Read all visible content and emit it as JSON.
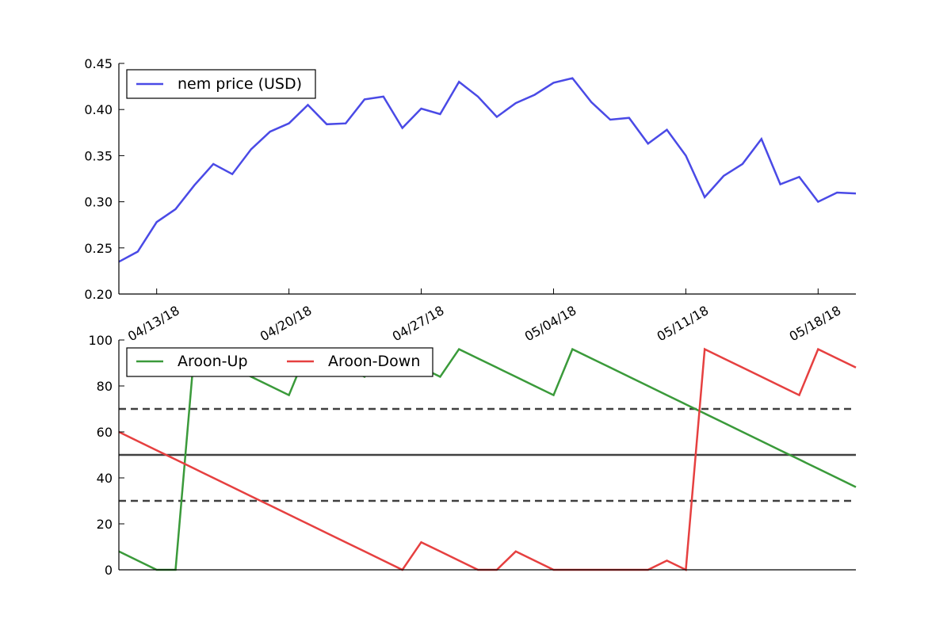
{
  "chart_data": [
    {
      "type": "line",
      "title": "",
      "xlabel": "",
      "ylabel": "",
      "ylim": [
        0.2,
        0.45
      ],
      "yticks": [
        "0.20",
        "0.25",
        "0.30",
        "0.35",
        "0.40",
        "0.45"
      ],
      "xticks": [
        "04/13/18",
        "04/20/18",
        "04/27/18",
        "05/04/18",
        "05/11/18",
        "05/18/18"
      ],
      "x": [
        "04/11/18",
        "04/12/18",
        "04/13/18",
        "04/14/18",
        "04/15/18",
        "04/16/18",
        "04/17/18",
        "04/18/18",
        "04/19/18",
        "04/20/18",
        "04/21/18",
        "04/22/18",
        "04/23/18",
        "04/24/18",
        "04/25/18",
        "04/26/18",
        "04/27/18",
        "04/28/18",
        "04/29/18",
        "04/30/18",
        "05/01/18",
        "05/02/18",
        "05/03/18",
        "05/04/18",
        "05/05/18",
        "05/06/18",
        "05/07/18",
        "05/08/18",
        "05/09/18",
        "05/10/18",
        "05/11/18",
        "05/12/18",
        "05/13/18",
        "05/14/18",
        "05/15/18",
        "05/16/18",
        "05/17/18",
        "05/18/18",
        "05/19/18",
        "05/20/18"
      ],
      "series": [
        {
          "name": "nem price (USD)",
          "color": "#4a4ae6",
          "values": [
            0.235,
            0.246,
            0.278,
            0.292,
            0.318,
            0.341,
            0.33,
            0.357,
            0.376,
            0.385,
            0.405,
            0.384,
            0.385,
            0.411,
            0.414,
            0.38,
            0.401,
            0.395,
            0.43,
            0.414,
            0.392,
            0.407,
            0.416,
            0.429,
            0.434,
            0.408,
            0.389,
            0.391,
            0.363,
            0.378,
            0.35,
            0.305,
            0.328,
            0.341,
            0.368,
            0.319,
            0.327,
            0.3,
            0.31,
            0.309
          ]
        }
      ],
      "legend": "upper left"
    },
    {
      "type": "line",
      "title": "",
      "xlabel": "",
      "ylabel": "",
      "ylim": [
        0,
        100
      ],
      "yticks": [
        "0",
        "20",
        "40",
        "60",
        "80",
        "100"
      ],
      "x": [
        "04/11/18",
        "04/12/18",
        "04/13/18",
        "04/14/18",
        "04/15/18",
        "04/16/18",
        "04/17/18",
        "04/18/18",
        "04/19/18",
        "04/20/18",
        "04/21/18",
        "04/22/18",
        "04/23/18",
        "04/24/18",
        "04/25/18",
        "04/26/18",
        "04/27/18",
        "04/28/18",
        "04/29/18",
        "04/30/18",
        "05/01/18",
        "05/02/18",
        "05/03/18",
        "05/04/18",
        "05/05/18",
        "05/06/18",
        "05/07/18",
        "05/08/18",
        "05/09/18",
        "05/10/18",
        "05/11/18",
        "05/12/18",
        "05/13/18",
        "05/14/18",
        "05/15/18",
        "05/16/18",
        "05/17/18",
        "05/18/18",
        "05/19/18",
        "05/20/18"
      ],
      "series": [
        {
          "name": "Aroon-Up",
          "color": "#3a9a3a",
          "values": [
            8,
            4,
            0,
            0,
            96,
            92,
            88,
            84,
            80,
            76,
            96,
            92,
            88,
            84,
            96,
            92,
            88,
            84,
            96,
            92,
            88,
            84,
            80,
            76,
            96,
            92,
            88,
            84,
            80,
            76,
            72,
            68,
            64,
            60,
            56,
            52,
            48,
            44,
            40,
            36
          ]
        },
        {
          "name": "Aroon-Down",
          "color": "#e64040",
          "values": [
            60,
            56,
            52,
            48,
            44,
            40,
            36,
            32,
            28,
            24,
            20,
            16,
            12,
            8,
            4,
            0,
            12,
            8,
            4,
            0,
            0,
            8,
            4,
            0,
            0,
            0,
            0,
            0,
            0,
            4,
            0,
            96,
            92,
            88,
            84,
            80,
            76,
            96,
            92,
            88
          ]
        }
      ],
      "reference_lines": [
        {
          "value": 70,
          "style": "dashed",
          "color": "#404040"
        },
        {
          "value": 50,
          "style": "solid",
          "color": "#404040"
        },
        {
          "value": 30,
          "style": "dashed",
          "color": "#404040"
        }
      ],
      "legend": "upper left"
    }
  ]
}
